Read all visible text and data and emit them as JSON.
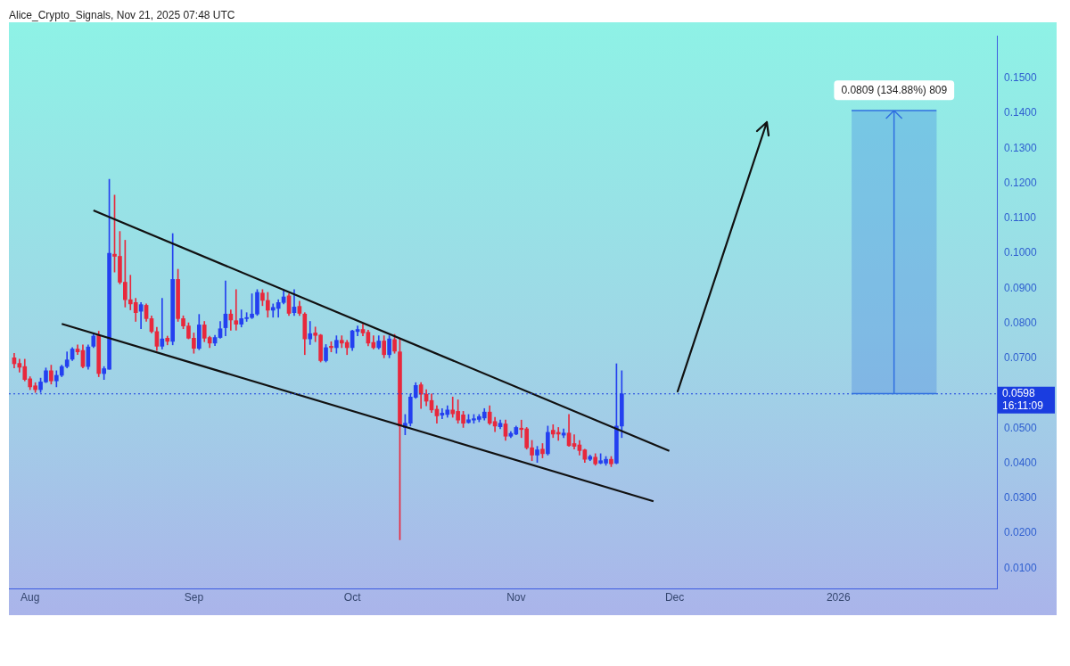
{
  "chart_data": {
    "type": "candlestick",
    "title": "Alice_Crypto_Signals, Nov 21, 2025 07:48 UTC",
    "x": [
      "2025-07-29",
      "2025-07-30",
      "2025-07-31",
      "2025-08-01",
      "2025-08-02",
      "2025-08-03",
      "2025-08-04",
      "2025-08-05",
      "2025-08-06",
      "2025-08-07",
      "2025-08-08",
      "2025-08-09",
      "2025-08-10",
      "2025-08-11",
      "2025-08-12",
      "2025-08-13",
      "2025-08-14",
      "2025-08-15",
      "2025-08-16",
      "2025-08-17",
      "2025-08-18",
      "2025-08-19",
      "2025-08-20",
      "2025-08-21",
      "2025-08-22",
      "2025-08-23",
      "2025-08-24",
      "2025-08-25",
      "2025-08-26",
      "2025-08-27",
      "2025-08-28",
      "2025-08-29",
      "2025-08-30",
      "2025-08-31",
      "2025-09-01",
      "2025-09-02",
      "2025-09-03",
      "2025-09-04",
      "2025-09-05",
      "2025-09-06",
      "2025-09-07",
      "2025-09-08",
      "2025-09-09",
      "2025-09-10",
      "2025-09-11",
      "2025-09-12",
      "2025-09-13",
      "2025-09-14",
      "2025-09-15",
      "2025-09-16",
      "2025-09-17",
      "2025-09-18",
      "2025-09-19",
      "2025-09-20",
      "2025-09-21",
      "2025-09-22",
      "2025-09-23",
      "2025-09-24",
      "2025-09-25",
      "2025-09-26",
      "2025-09-27",
      "2025-09-28",
      "2025-09-29",
      "2025-09-30",
      "2025-10-01",
      "2025-10-02",
      "2025-10-03",
      "2025-10-04",
      "2025-10-05",
      "2025-10-06",
      "2025-10-07",
      "2025-10-08",
      "2025-10-09",
      "2025-10-10",
      "2025-10-11",
      "2025-10-12",
      "2025-10-13",
      "2025-10-14",
      "2025-10-15",
      "2025-10-16",
      "2025-10-17",
      "2025-10-18",
      "2025-10-19",
      "2025-10-20",
      "2025-10-21",
      "2025-10-22",
      "2025-10-23",
      "2025-10-24",
      "2025-10-25",
      "2025-10-26",
      "2025-10-27",
      "2025-10-28",
      "2025-10-29",
      "2025-10-30",
      "2025-10-31",
      "2025-11-01",
      "2025-11-02",
      "2025-11-03",
      "2025-11-04",
      "2025-11-05",
      "2025-11-06",
      "2025-11-07",
      "2025-11-08",
      "2025-11-09",
      "2025-11-10",
      "2025-11-11",
      "2025-11-12",
      "2025-11-13",
      "2025-11-14",
      "2025-11-15",
      "2025-11-16",
      "2025-11-17",
      "2025-11-18",
      "2025-11-19",
      "2025-11-20",
      "2025-11-21"
    ],
    "ohlc": [
      [
        0.0701,
        0.0714,
        0.0672,
        0.0684
      ],
      [
        0.0685,
        0.0697,
        0.066,
        0.0674
      ],
      [
        0.0676,
        0.0697,
        0.0635,
        0.0639
      ],
      [
        0.0641,
        0.0647,
        0.061,
        0.0618
      ],
      [
        0.0621,
        0.063,
        0.0602,
        0.061
      ],
      [
        0.061,
        0.0643,
        0.0602,
        0.0632
      ],
      [
        0.0632,
        0.0672,
        0.063,
        0.0664
      ],
      [
        0.0664,
        0.068,
        0.0626,
        0.0635
      ],
      [
        0.0635,
        0.0664,
        0.0618,
        0.0651
      ],
      [
        0.0651,
        0.068,
        0.0647,
        0.0676
      ],
      [
        0.0676,
        0.0718,
        0.0672,
        0.0695
      ],
      [
        0.0697,
        0.073,
        0.0693,
        0.0726
      ],
      [
        0.0726,
        0.0738,
        0.071,
        0.0718
      ],
      [
        0.0722,
        0.0738,
        0.0672,
        0.0676
      ],
      [
        0.0676,
        0.0738,
        0.0668,
        0.0732
      ],
      [
        0.0734,
        0.0772,
        0.073,
        0.0763
      ],
      [
        0.0765,
        0.0777,
        0.0647,
        0.0656
      ],
      [
        0.0656,
        0.0676,
        0.0639,
        0.067
      ],
      [
        0.0668,
        0.1211,
        0.0668,
        0.1
      ],
      [
        0.0997,
        0.1166,
        0.0946,
        0.0991
      ],
      [
        0.0991,
        0.1062,
        0.0912,
        0.0917
      ],
      [
        0.0917,
        0.1037,
        0.0846,
        0.0867
      ],
      [
        0.0867,
        0.0937,
        0.0838,
        0.0855
      ],
      [
        0.0859,
        0.0871,
        0.0805,
        0.083
      ],
      [
        0.0834,
        0.0859,
        0.0784,
        0.0853
      ],
      [
        0.0851,
        0.0855,
        0.0805,
        0.0813
      ],
      [
        0.0813,
        0.0821,
        0.0772,
        0.0776
      ],
      [
        0.0776,
        0.0788,
        0.0722,
        0.0734
      ],
      [
        0.0734,
        0.0871,
        0.0726,
        0.0755
      ],
      [
        0.0757,
        0.0763,
        0.0738,
        0.0748
      ],
      [
        0.0748,
        0.1056,
        0.0738,
        0.0925
      ],
      [
        0.0925,
        0.0954,
        0.0805,
        0.0813
      ],
      [
        0.0813,
        0.0821,
        0.0784,
        0.0792
      ],
      [
        0.0792,
        0.0801,
        0.0755,
        0.0757
      ],
      [
        0.0757,
        0.0772,
        0.0714,
        0.0728
      ],
      [
        0.0728,
        0.0825,
        0.0724,
        0.0795
      ],
      [
        0.0795,
        0.0805,
        0.0747,
        0.0757
      ],
      [
        0.0759,
        0.0763,
        0.073,
        0.0743
      ],
      [
        0.0743,
        0.0765,
        0.0736,
        0.0759
      ],
      [
        0.0759,
        0.0805,
        0.0757,
        0.0784
      ],
      [
        0.0787,
        0.0921,
        0.0764,
        0.0826
      ],
      [
        0.0826,
        0.0838,
        0.078,
        0.0809
      ],
      [
        0.0807,
        0.0896,
        0.078,
        0.0797
      ],
      [
        0.0797,
        0.0838,
        0.0789,
        0.0813
      ],
      [
        0.0813,
        0.083,
        0.0805,
        0.0816
      ],
      [
        0.0816,
        0.0884,
        0.0813,
        0.0826
      ],
      [
        0.0826,
        0.0896,
        0.0822,
        0.0888
      ],
      [
        0.0886,
        0.0896,
        0.085,
        0.0865
      ],
      [
        0.0865,
        0.0888,
        0.0817,
        0.0837
      ],
      [
        0.0837,
        0.0855,
        0.0817,
        0.0845
      ],
      [
        0.0842,
        0.0867,
        0.0817,
        0.0859
      ],
      [
        0.0859,
        0.0896,
        0.0855,
        0.0875
      ],
      [
        0.0878,
        0.0884,
        0.0822,
        0.0828
      ],
      [
        0.083,
        0.0896,
        0.0822,
        0.0846
      ],
      [
        0.0848,
        0.0863,
        0.0822,
        0.0828
      ],
      [
        0.0826,
        0.083,
        0.071,
        0.0755
      ],
      [
        0.0755,
        0.0805,
        0.0739,
        0.077
      ],
      [
        0.0772,
        0.0789,
        0.0747,
        0.0765
      ],
      [
        0.0766,
        0.0768,
        0.0689,
        0.0693
      ],
      [
        0.0693,
        0.0739,
        0.0689,
        0.073
      ],
      [
        0.0734,
        0.0747,
        0.0718,
        0.073
      ],
      [
        0.073,
        0.0764,
        0.0714,
        0.0751
      ],
      [
        0.0751,
        0.0764,
        0.073,
        0.0743
      ],
      [
        0.0745,
        0.0751,
        0.071,
        0.073
      ],
      [
        0.073,
        0.078,
        0.0722,
        0.0778
      ],
      [
        0.0776,
        0.0792,
        0.0764,
        0.0782
      ],
      [
        0.0782,
        0.0797,
        0.0764,
        0.0772
      ],
      [
        0.0774,
        0.078,
        0.0735,
        0.0743
      ],
      [
        0.0745,
        0.0764,
        0.0726,
        0.073
      ],
      [
        0.073,
        0.0764,
        0.0726,
        0.0749
      ],
      [
        0.0749,
        0.0764,
        0.0701,
        0.071
      ],
      [
        0.071,
        0.0764,
        0.0701,
        0.0755
      ],
      [
        0.0753,
        0.0768,
        0.0714,
        0.072
      ],
      [
        0.0718,
        0.0755,
        0.0181,
        0.0506
      ],
      [
        0.0502,
        0.0539,
        0.0481,
        0.0514
      ],
      [
        0.0514,
        0.0598,
        0.0506,
        0.0589
      ],
      [
        0.0588,
        0.063,
        0.0585,
        0.0622
      ],
      [
        0.0624,
        0.063,
        0.0556,
        0.0597
      ],
      [
        0.0597,
        0.061,
        0.0564,
        0.0577
      ],
      [
        0.0579,
        0.0598,
        0.0545,
        0.0552
      ],
      [
        0.0554,
        0.0564,
        0.0514,
        0.0535
      ],
      [
        0.0537,
        0.0556,
        0.0527,
        0.0543
      ],
      [
        0.0539,
        0.0564,
        0.0531,
        0.0552
      ],
      [
        0.0552,
        0.0589,
        0.0531,
        0.0541
      ],
      [
        0.0548,
        0.0581,
        0.0514,
        0.0523
      ],
      [
        0.0538,
        0.0548,
        0.0502,
        0.0514
      ],
      [
        0.0516,
        0.0539,
        0.0514,
        0.0524
      ],
      [
        0.0523,
        0.0539,
        0.0514,
        0.0527
      ],
      [
        0.0525,
        0.0539,
        0.0518,
        0.0533
      ],
      [
        0.0529,
        0.0556,
        0.0523,
        0.0546
      ],
      [
        0.0546,
        0.0564,
        0.051,
        0.0514
      ],
      [
        0.0519,
        0.0531,
        0.049,
        0.0506
      ],
      [
        0.0504,
        0.0523,
        0.0498,
        0.0514
      ],
      [
        0.0512,
        0.0523,
        0.0465,
        0.0477
      ],
      [
        0.0477,
        0.049,
        0.0473,
        0.0485
      ],
      [
        0.0483,
        0.0506,
        0.0481,
        0.0502
      ],
      [
        0.05,
        0.0523,
        0.0473,
        0.0496
      ],
      [
        0.0498,
        0.0502,
        0.044,
        0.0444
      ],
      [
        0.0444,
        0.0465,
        0.0407,
        0.0423
      ],
      [
        0.0423,
        0.0448,
        0.0402,
        0.0438
      ],
      [
        0.044,
        0.0456,
        0.0415,
        0.0427
      ],
      [
        0.0427,
        0.0506,
        0.0423,
        0.0488
      ],
      [
        0.0494,
        0.051,
        0.0473,
        0.0483
      ],
      [
        0.0488,
        0.0502,
        0.0465,
        0.0483
      ],
      [
        0.048,
        0.0498,
        0.0473,
        0.0486
      ],
      [
        0.0486,
        0.0539,
        0.0448,
        0.045
      ],
      [
        0.0456,
        0.0481,
        0.044,
        0.0448
      ],
      [
        0.0452,
        0.0465,
        0.0423,
        0.0436
      ],
      [
        0.0438,
        0.044,
        0.0402,
        0.0411
      ],
      [
        0.0411,
        0.0423,
        0.0407,
        0.0419
      ],
      [
        0.0417,
        0.0427,
        0.0394,
        0.0398
      ],
      [
        0.04,
        0.0427,
        0.0398,
        0.0407
      ],
      [
        0.04,
        0.0419,
        0.0394,
        0.0411
      ],
      [
        0.0411,
        0.0419,
        0.039,
        0.0398
      ],
      [
        0.04,
        0.0684,
        0.0398,
        0.0506
      ],
      [
        0.0506,
        0.0664,
        0.0473,
        0.0598
      ]
    ],
    "series": [
      {
        "type": "line",
        "color": "#111111",
        "x": [
          "2025-08-13",
          "2025-11-30"
        ],
        "values": [
          0.1122,
          0.0435
        ]
      },
      {
        "type": "line",
        "color": "#111111",
        "x": [
          "2025-08-07",
          "2025-11-27"
        ],
        "values": [
          0.0798,
          0.0291
        ]
      }
    ],
    "marker": "none",
    "xlim": [
      "2025-07-28",
      "2026-01-31"
    ],
    "xticks": [
      {
        "value": "2025-08-01",
        "label": "Aug"
      },
      {
        "value": "2025-09-01",
        "label": "Sep"
      },
      {
        "value": "2025-10-01",
        "label": "Oct"
      },
      {
        "value": "2025-11-01",
        "label": "Nov"
      },
      {
        "value": "2025-12-01",
        "label": "Dec"
      },
      {
        "value": "2026-01-01",
        "label": "2026"
      }
    ],
    "ylim": [
      0.0042,
      0.1621
    ],
    "yticks": [
      {
        "value": 0.01,
        "label": "0.0100"
      },
      {
        "value": 0.02,
        "label": "0.0200"
      },
      {
        "value": 0.03,
        "label": "0.0300"
      },
      {
        "value": 0.04,
        "label": "0.0400"
      },
      {
        "value": 0.05,
        "label": "0.0500"
      },
      {
        "value": 0.07,
        "label": "0.0700"
      },
      {
        "value": 0.08,
        "label": "0.0800"
      },
      {
        "value": 0.09,
        "label": "0.0900"
      },
      {
        "value": 0.1,
        "label": "0.1000"
      },
      {
        "value": 0.11,
        "label": "0.1100"
      },
      {
        "value": 0.12,
        "label": "0.1200"
      },
      {
        "value": 0.13,
        "label": "0.1300"
      },
      {
        "value": 0.14,
        "label": "0.1400"
      },
      {
        "value": 0.15,
        "label": "0.1500"
      }
    ],
    "ref_lines": [
      {
        "axis": "y",
        "value": 0.0598,
        "label": "0.0598",
        "color": "#1a3de0",
        "line_style": "dotted"
      }
    ],
    "bands": [
      {
        "axis": "y",
        "from": 0.0598,
        "to": 0.1407,
        "label": "0.0809 (134.88%) 809",
        "color": "#2f6fe0"
      }
    ],
    "annotations": [
      "16:11:09"
    ]
  }
}
